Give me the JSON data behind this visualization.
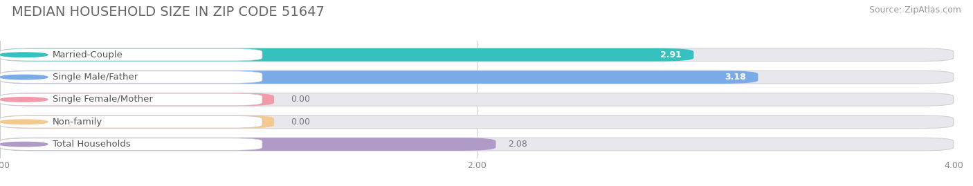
{
  "title": "MEDIAN HOUSEHOLD SIZE IN ZIP CODE 51647",
  "source": "Source: ZipAtlas.com",
  "categories": [
    "Married-Couple",
    "Single Male/Father",
    "Single Female/Mother",
    "Non-family",
    "Total Households"
  ],
  "values": [
    2.91,
    3.18,
    0.0,
    0.0,
    2.08
  ],
  "bar_colors": [
    "#36c0c0",
    "#7aaae8",
    "#f09aaa",
    "#f5c890",
    "#b09ac8"
  ],
  "xlim": [
    0,
    4.0
  ],
  "xticks": [
    0.0,
    2.0,
    4.0
  ],
  "xtick_labels": [
    "0.00",
    "2.00",
    "4.00"
  ],
  "background_color": "#ffffff",
  "bar_bg_color": "#e8e8ec",
  "title_fontsize": 14,
  "source_fontsize": 9,
  "label_fontsize": 9.5,
  "value_fontsize": 9
}
